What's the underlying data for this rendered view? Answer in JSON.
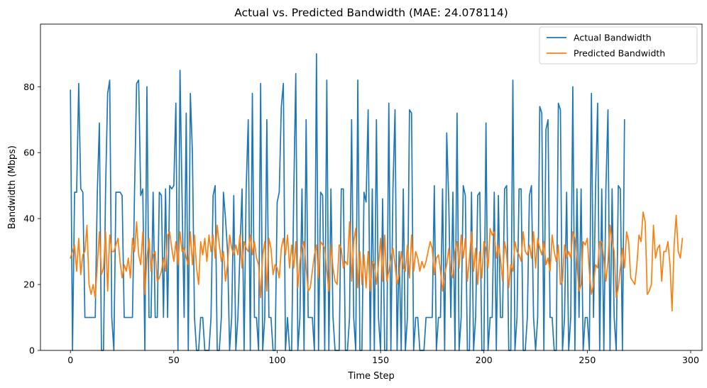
{
  "chart_data": {
    "type": "line",
    "title": "Actual vs. Predicted Bandwidth (MAE: 24.078114)",
    "xlabel": "Time Step",
    "ylabel": "Bandwidth (Mbps)",
    "xlim": [
      -14.5,
      305.5
    ],
    "ylim": [
      0,
      99
    ],
    "xticks": [
      0,
      50,
      100,
      150,
      200,
      250,
      300
    ],
    "yticks": [
      0,
      20,
      40,
      60,
      80
    ],
    "grid": false,
    "legend_position": "top-right",
    "series": [
      {
        "name": "Actual Bandwidth",
        "color": "#1f77b4",
        "values": [
          79,
          0,
          48,
          48,
          81,
          49,
          48,
          10,
          10,
          10,
          10,
          10,
          10,
          48,
          69,
          0,
          0,
          49,
          78,
          82,
          10,
          0,
          48,
          48,
          48,
          47,
          10,
          10,
          10,
          10,
          10,
          48,
          81,
          82,
          47,
          49,
          0,
          80,
          10,
          10,
          48,
          10,
          10,
          48,
          47,
          10,
          49,
          10,
          50,
          49,
          50,
          75,
          0,
          85,
          46,
          10,
          72,
          0,
          78,
          60,
          10,
          0,
          0,
          10,
          10,
          0,
          0,
          0,
          10,
          47,
          50,
          0,
          0,
          10,
          48,
          40,
          30,
          0,
          10,
          47,
          0,
          10,
          30,
          49,
          0,
          49,
          70,
          0,
          78,
          10,
          10,
          0,
          81,
          0,
          10,
          70,
          10,
          10,
          0,
          0,
          45,
          48,
          74,
          81,
          0,
          10,
          0,
          0,
          47,
          84,
          0,
          10,
          49,
          0,
          70,
          10,
          10,
          10,
          0,
          90,
          0,
          48,
          47,
          0,
          82,
          0,
          49,
          10,
          0,
          0,
          0,
          49,
          49,
          0,
          0,
          10,
          70,
          10,
          0,
          82,
          0,
          0,
          48,
          45,
          73,
          0,
          49,
          0,
          70,
          10,
          0,
          46,
          0,
          0,
          75,
          0,
          49,
          73,
          0,
          30,
          0,
          49,
          0,
          10,
          73,
          72,
          0,
          10,
          10,
          0,
          0,
          0,
          10,
          10,
          10,
          10,
          50,
          0,
          10,
          10,
          49,
          0,
          66,
          45,
          10,
          48,
          0,
          72,
          0,
          10,
          50,
          47,
          0,
          0,
          48,
          0,
          10,
          47,
          48,
          0,
          0,
          69,
          0,
          10,
          10,
          48,
          0,
          47,
          10,
          10,
          49,
          50,
          0,
          0,
          82,
          0,
          10,
          49,
          49,
          0,
          0,
          10,
          47,
          50,
          10,
          0,
          10,
          74,
          72,
          0,
          67,
          70,
          10,
          10,
          0,
          0,
          75,
          73,
          0,
          10,
          48,
          0,
          10,
          80,
          0,
          49,
          10,
          49,
          0,
          10,
          10,
          0,
          78,
          10,
          49,
          75,
          0,
          49,
          0,
          49,
          73,
          0,
          49,
          10,
          0,
          50,
          49,
          0,
          70
        ],
        "x_start": 0
      },
      {
        "name": "Predicted Bandwidth",
        "color": "#ff7f0e",
        "values": [
          28,
          30,
          32,
          24,
          34,
          23,
          29,
          30,
          38,
          20,
          17,
          20,
          16,
          26,
          36,
          23,
          25,
          36,
          18,
          35,
          30,
          30,
          32,
          34,
          27,
          22,
          26,
          24,
          28,
          22,
          34,
          30,
          39,
          29,
          26,
          36,
          17,
          28,
          34,
          24,
          29,
          30,
          21,
          22,
          24,
          28,
          24,
          35,
          36,
          31,
          27,
          33,
          26,
          36,
          30,
          31,
          28,
          26,
          36,
          26,
          35,
          25,
          20,
          33,
          29,
          34,
          27,
          35,
          30,
          35,
          28,
          38,
          32,
          27,
          30,
          21,
          26,
          35,
          31,
          29,
          32,
          29,
          35,
          25,
          33,
          31,
          30,
          35,
          29,
          33,
          28,
          26,
          16,
          29,
          33,
          18,
          34,
          31,
          23,
          26,
          25,
          22,
          31,
          34,
          29,
          35,
          25,
          32,
          25,
          33,
          19,
          27,
          31,
          33,
          25,
          18,
          19,
          24,
          29,
          32,
          22,
          33,
          32,
          31,
          24,
          18,
          32,
          25,
          21,
          20,
          32,
          31,
          25,
          27,
          26,
          39,
          21,
          33,
          37,
          19,
          30,
          20,
          29,
          19,
          30,
          18,
          27,
          26,
          20,
          26,
          34,
          21,
          35,
          21,
          24,
          28,
          31,
          26,
          20,
          23,
          30,
          25,
          24,
          32,
          22,
          35,
          24,
          30,
          28,
          24,
          27,
          25,
          27,
          30,
          33,
          31,
          23,
          28,
          29,
          24,
          18,
          23,
          26,
          31,
          24,
          22,
          30,
          33,
          25,
          35,
          28,
          34,
          21,
          28,
          36,
          24,
          31,
          20,
          30,
          22,
          33,
          31,
          25,
          37,
          35,
          36,
          28,
          32,
          28,
          21,
          33,
          29,
          19,
          26,
          24,
          33,
          30,
          29,
          27,
          36,
          30,
          29,
          32,
          28,
          36,
          25,
          34,
          31,
          29,
          33,
          26,
          28,
          24,
          35,
          30,
          27,
          32,
          20,
          21,
          32,
          28,
          30,
          28,
          36,
          34,
          26,
          18,
          20,
          33,
          32,
          34,
          24,
          17,
          20,
          26,
          25,
          33,
          33,
          28,
          21,
          27,
          38,
          33,
          30,
          16,
          19,
          25,
          31,
          25,
          36,
          33,
          22,
          21,
          20,
          26,
          35,
          33,
          42,
          39,
          17,
          18,
          20,
          38,
          28,
          31,
          32,
          21,
          30,
          30,
          33,
          26,
          12,
          32,
          41,
          30,
          28,
          34
        ],
        "x_start": 0
      }
    ]
  }
}
